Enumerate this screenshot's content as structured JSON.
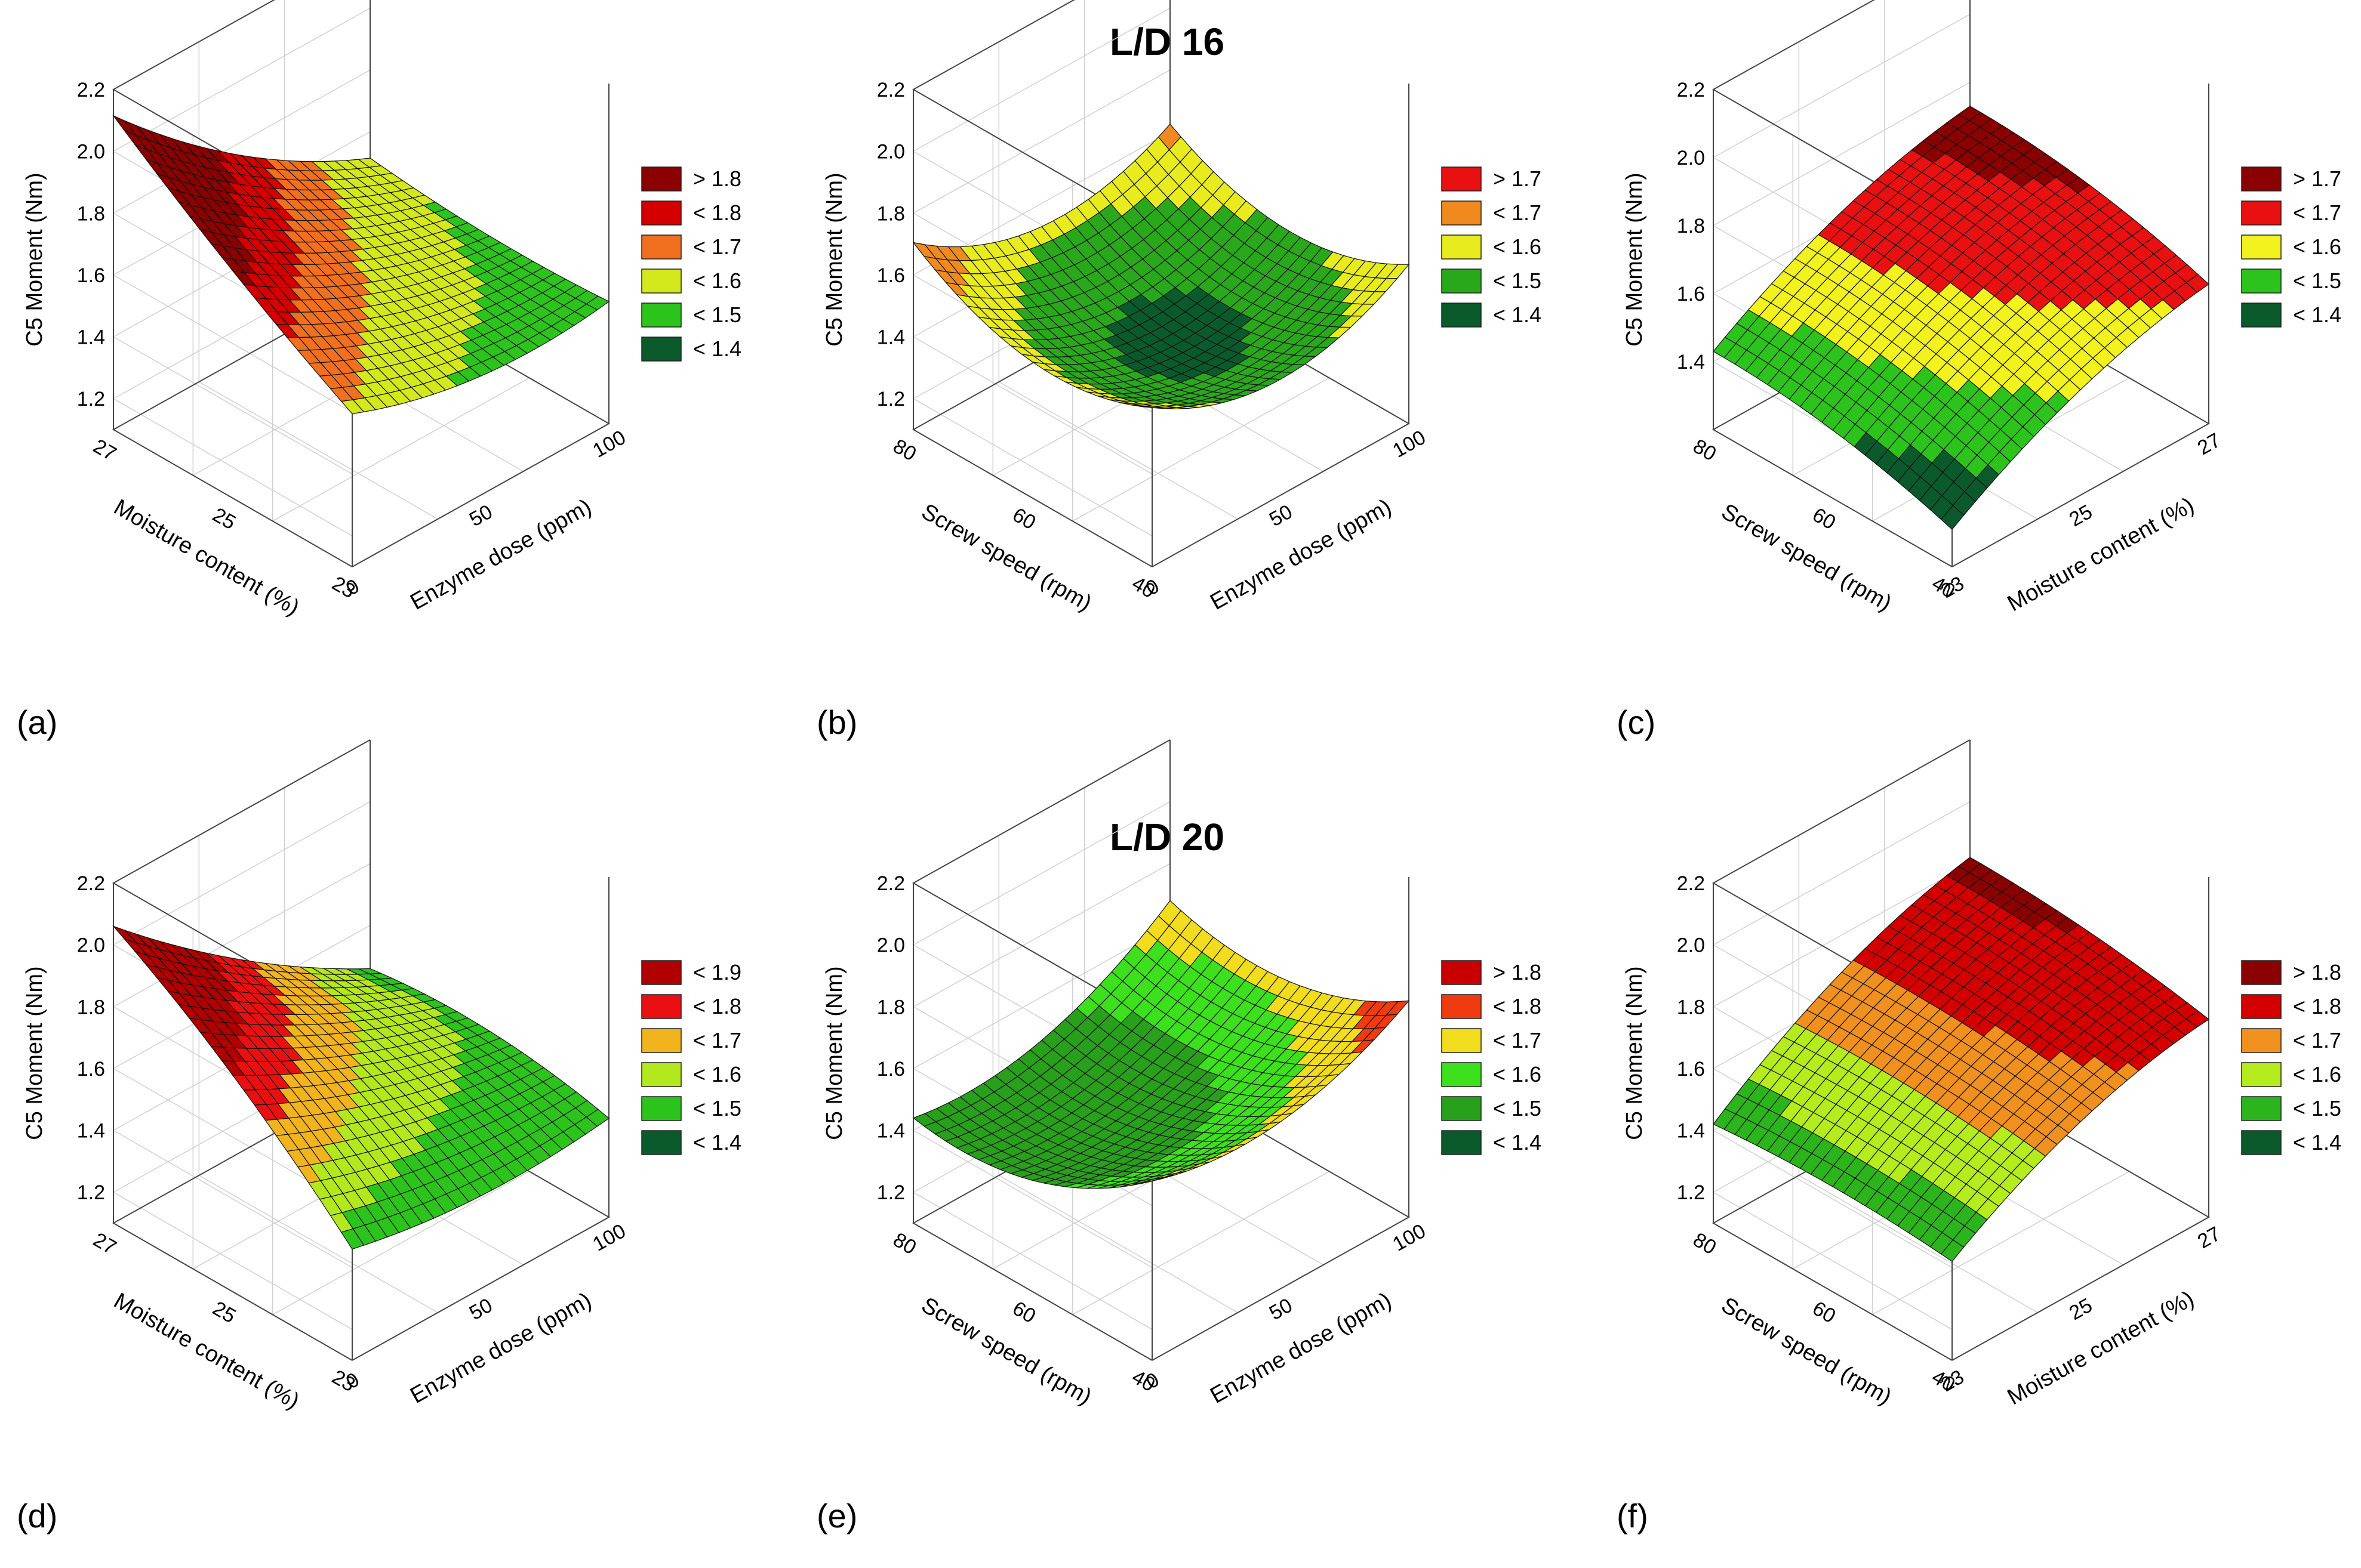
{
  "figure": {
    "sections": [
      {
        "title": "L/D 16"
      },
      {
        "title": "L/D 20"
      }
    ]
  },
  "chart_data": [
    {
      "panel": "(a)",
      "type": "surface",
      "x_axis": {
        "label": "Enzyme dose (ppm)",
        "ticks": [
          "0",
          "50",
          "100"
        ],
        "range": [
          0,
          100
        ]
      },
      "y_axis": {
        "label": "Moisture content (%)",
        "ticks": [
          "23",
          "25",
          "27"
        ],
        "range": [
          23,
          27
        ]
      },
      "z_axis": {
        "label": "C5 Moment (Nm)",
        "ticks": [
          "1.2",
          "1.4",
          "1.6",
          "1.8",
          "2.0",
          "2.2"
        ],
        "range": [
          1.1,
          2.2
        ]
      },
      "model": {
        "c": 1.6,
        "a": -0.175,
        "b": 0.135,
        "ab": -0.125,
        "aa": 0.06,
        "bb": 0.02
      },
      "legend": [
        {
          "label": "> 1.8",
          "color": "#8b0000",
          "min": 1.8
        },
        {
          "label": "< 1.8",
          "color": "#d40000",
          "min": 1.7
        },
        {
          "label": "< 1.7",
          "color": "#f07020",
          "min": 1.6
        },
        {
          "label": "< 1.6",
          "color": "#d4e81e",
          "min": 1.5
        },
        {
          "label": "< 1.5",
          "color": "#2cc41c",
          "min": 1.4
        },
        {
          "label": "< 1.4",
          "color": "#0b5a2c",
          "min": 0
        }
      ]
    },
    {
      "panel": "(b)",
      "type": "surface",
      "x_axis": {
        "label": "Enzyme dose (ppm)",
        "ticks": [
          "0",
          "50",
          "100"
        ],
        "range": [
          0,
          100
        ]
      },
      "y_axis": {
        "label": "Screw speed (rpm)",
        "ticks": [
          "40",
          "60",
          "80"
        ],
        "range": [
          40,
          80
        ]
      },
      "z_axis": {
        "label": "C5 Moment (Nm)",
        "ticks": [
          "1.2",
          "1.4",
          "1.6",
          "1.8",
          "2.0",
          "2.2"
        ],
        "range": [
          1.1,
          2.2
        ]
      },
      "model": {
        "c": 1.38,
        "a": -0.02,
        "b": 0.025,
        "ab": -0.02,
        "aa": 0.14,
        "bb": 0.12
      },
      "legend": [
        {
          "label": "> 1.7",
          "color": "#e81010",
          "min": 1.7
        },
        {
          "label": "< 1.7",
          "color": "#f08a1e",
          "min": 1.6
        },
        {
          "label": "< 1.6",
          "color": "#e8ec1e",
          "min": 1.5
        },
        {
          "label": "< 1.5",
          "color": "#2aa81c",
          "min": 1.4
        },
        {
          "label": "< 1.4",
          "color": "#0b5a2c",
          "min": 0
        }
      ]
    },
    {
      "panel": "(c)",
      "type": "surface",
      "x_axis": {
        "label": "Moisture content (%)",
        "ticks": [
          "23",
          "25",
          "27"
        ],
        "range": [
          23,
          27
        ]
      },
      "y_axis": {
        "label": "Screw speed (rpm)",
        "ticks": [
          "40",
          "60",
          "80"
        ],
        "range": [
          40,
          80
        ]
      },
      "z_axis": {
        "label": "C5 Moment (Nm)",
        "ticks": [
          "1.4",
          "1.6",
          "1.8",
          "2.0",
          "2.2"
        ],
        "range": [
          1.2,
          2.2
        ]
      },
      "model": {
        "c": 1.6,
        "a": 0.15,
        "b": 0.06,
        "ab": 0,
        "aa": -0.05,
        "bb": -0.03
      },
      "legend": [
        {
          "label": "> 1.7",
          "color": "#8b0000",
          "min": 1.7
        },
        {
          "label": "< 1.7",
          "color": "#e81010",
          "min": 1.6
        },
        {
          "label": "< 1.6",
          "color": "#f2f21e",
          "min": 1.5
        },
        {
          "label": "< 1.5",
          "color": "#2cc41c",
          "min": 1.4
        },
        {
          "label": "< 1.4",
          "color": "#0b5a2c",
          "min": 0
        }
      ]
    },
    {
      "panel": "(d)",
      "type": "surface",
      "x_axis": {
        "label": "Enzyme dose (ppm)",
        "ticks": [
          "0",
          "50",
          "100"
        ],
        "range": [
          0,
          100
        ]
      },
      "y_axis": {
        "label": "Moisture content (%)",
        "ticks": [
          "23",
          "25",
          "27"
        ],
        "range": [
          23,
          27
        ]
      },
      "z_axis": {
        "label": "C5 Moment (Nm)",
        "ticks": [
          "1.2",
          "1.4",
          "1.6",
          "1.8",
          "2.0",
          "2.2"
        ],
        "range": [
          1.1,
          2.2
        ]
      },
      "model": {
        "c": 1.6,
        "a": -0.16,
        "b": 0.16,
        "ab": -0.14,
        "aa": 0.04,
        "bb": -0.04
      },
      "legend": [
        {
          "label": "< 1.9",
          "color": "#b00000",
          "min": 1.8
        },
        {
          "label": "< 1.8",
          "color": "#e81010",
          "min": 1.7
        },
        {
          "label": "< 1.7",
          "color": "#f2b41e",
          "min": 1.6
        },
        {
          "label": "< 1.6",
          "color": "#b4e81e",
          "min": 1.5
        },
        {
          "label": "< 1.5",
          "color": "#2cc41c",
          "min": 1.4
        },
        {
          "label": "< 1.4",
          "color": "#0b5a2c",
          "min": 0
        }
      ]
    },
    {
      "panel": "(e)",
      "type": "surface",
      "x_axis": {
        "label": "Enzyme dose (ppm)",
        "ticks": [
          "0",
          "50",
          "100"
        ],
        "range": [
          0,
          100
        ]
      },
      "y_axis": {
        "label": "Screw speed (rpm)",
        "ticks": [
          "40",
          "60",
          "80"
        ],
        "range": [
          40,
          80
        ]
      },
      "z_axis": {
        "label": "C5 Moment (Nm)",
        "ticks": [
          "1.2",
          "1.4",
          "1.6",
          "1.8",
          "2.0",
          "2.2"
        ],
        "range": [
          1.1,
          2.2
        ]
      },
      "model": {
        "c": 1.45,
        "a": 0.09,
        "b": -0.09,
        "ab": 0.03,
        "aa": 0.1,
        "bb": 0.1
      },
      "legend": [
        {
          "label": "> 1.8",
          "color": "#c80000",
          "min": 1.8
        },
        {
          "label": "< 1.8",
          "color": "#f03a10",
          "min": 1.7
        },
        {
          "label": "< 1.7",
          "color": "#f2dc1e",
          "min": 1.6
        },
        {
          "label": "< 1.6",
          "color": "#3ce01c",
          "min": 1.5
        },
        {
          "label": "< 1.5",
          "color": "#28a01c",
          "min": 1.4
        },
        {
          "label": "< 1.4",
          "color": "#0b5a2c",
          "min": 0
        }
      ]
    },
    {
      "panel": "(f)",
      "type": "surface",
      "x_axis": {
        "label": "Moisture content (%)",
        "ticks": [
          "23",
          "25",
          "27"
        ],
        "range": [
          23,
          27
        ]
      },
      "y_axis": {
        "label": "Screw speed (rpm)",
        "ticks": [
          "40",
          "60",
          "80"
        ],
        "range": [
          40,
          80
        ]
      },
      "z_axis": {
        "label": "C5 Moment (Nm)",
        "ticks": [
          "1.2",
          "1.4",
          "1.6",
          "1.8",
          "2.0",
          "2.2"
        ],
        "range": [
          1.1,
          2.2
        ]
      },
      "model": {
        "c": 1.68,
        "a": 0.18,
        "b": 0.02,
        "ab": 0.02,
        "aa": -0.06,
        "bb": -0.02
      },
      "legend": [
        {
          "label": "> 1.8",
          "color": "#8b0000",
          "min": 1.8
        },
        {
          "label": "< 1.8",
          "color": "#d40000",
          "min": 1.7
        },
        {
          "label": "< 1.7",
          "color": "#f0901e",
          "min": 1.6
        },
        {
          "label": "< 1.6",
          "color": "#b4ec1e",
          "min": 1.5
        },
        {
          "label": "< 1.5",
          "color": "#2cb41c",
          "min": 1.4
        },
        {
          "label": "< 1.4",
          "color": "#0b5a2c",
          "min": 0
        }
      ]
    }
  ]
}
